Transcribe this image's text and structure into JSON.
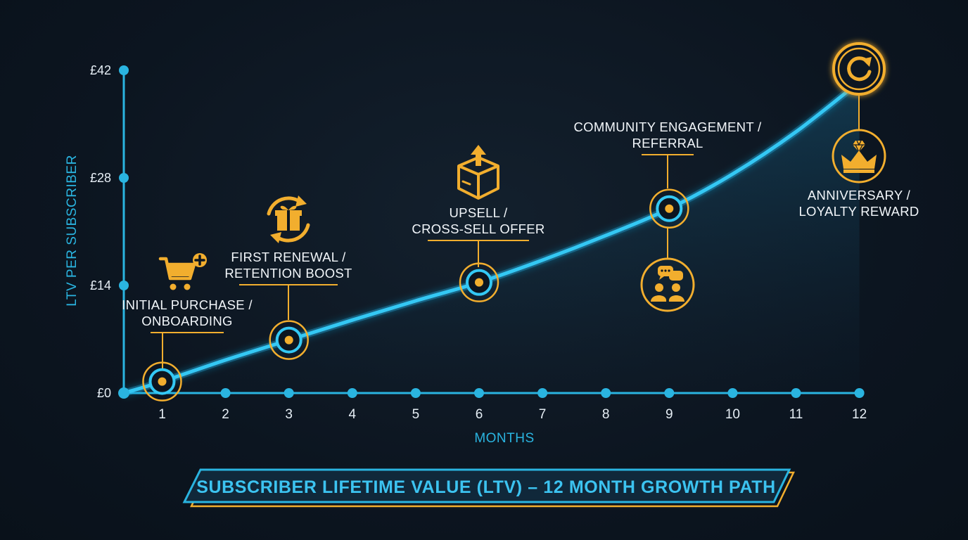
{
  "chart_data": {
    "type": "line",
    "title": "SUBSCRIBER LIFETIME VALUE (LTV) – 12 MONTH GROWTH PATH",
    "xlabel": "MONTHS",
    "ylabel": "LTV PER SUBSCRIBER",
    "x_ticks": [
      "1",
      "2",
      "3",
      "4",
      "5",
      "6",
      "7",
      "8",
      "9",
      "10",
      "11",
      "12"
    ],
    "y_ticks": [
      "£0",
      "£14",
      "£28",
      "£42"
    ],
    "xlim": [
      0.5,
      12
    ],
    "ylim": [
      0,
      42
    ],
    "grid": false,
    "series": [
      {
        "x": [
          0.5,
          1,
          2,
          3,
          4,
          5,
          6,
          7,
          8,
          9,
          10,
          11,
          12
        ],
        "y": [
          0,
          1.5,
          4.3,
          6.9,
          9.5,
          12,
          14.4,
          17.3,
          20.5,
          24,
          28.5,
          34,
          40.5
        ]
      }
    ],
    "milestones": [
      {
        "month": 1,
        "value": 1.5,
        "icon": "cart-plus-icon",
        "lines": [
          "INITIAL PURCHASE /",
          "ONBOARDING"
        ]
      },
      {
        "month": 3,
        "value": 6.9,
        "icon": "gift-renew-icon",
        "lines": [
          "FIRST RENEWAL /",
          "RETENTION BOOST"
        ]
      },
      {
        "month": 6,
        "value": 14.4,
        "icon": "box-upsell-icon",
        "lines": [
          "UPSELL /",
          "CROSS-SELL OFFER"
        ]
      },
      {
        "month": 9,
        "value": 24,
        "icon": "community-chat-icon",
        "lines": [
          "COMMUNITY ENGAGEMENT /",
          "REFERRAL"
        ]
      },
      {
        "month": 12,
        "value": 40.5,
        "icon": "crown-gem-icon",
        "lines": [
          "ANNIVERSARY /",
          "LOYALTY REWARD"
        ]
      }
    ],
    "colors": {
      "line": "#29c4f2",
      "accent": "#f2ae2e",
      "background": "#0c1520"
    }
  }
}
